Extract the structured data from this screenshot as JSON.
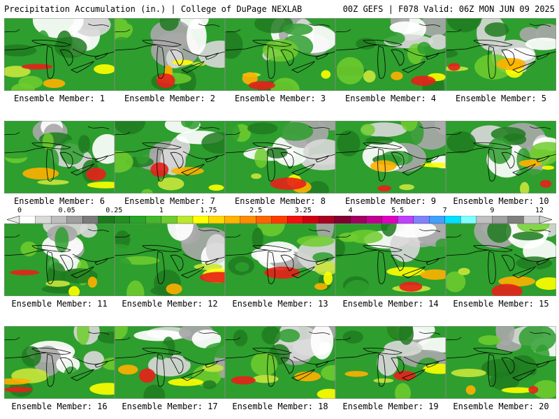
{
  "header": {
    "left_text": "Precipitation Accumulation (in.) | College of DuPage NEXLAB",
    "right_text": "00Z GEFS | F078 Valid: 06Z MON JUN 09 2025"
  },
  "legend": {
    "tick_labels": [
      "0",
      "0.05",
      "0.25",
      "1",
      "1.75",
      "2.5",
      "3.25",
      "4",
      "5.5",
      "7",
      "9",
      "12"
    ],
    "colors": [
      "#ffffff",
      "#d9d9d9",
      "#bdbdbd",
      "#9e9e9e",
      "#7a7a7a",
      "#1c7a1c",
      "#208f20",
      "#27a527",
      "#44b82c",
      "#6fcc2e",
      "#b9e82c",
      "#ffff00",
      "#ffd700",
      "#ffb400",
      "#ff8c00",
      "#ff6400",
      "#ff3c00",
      "#f01010",
      "#d00010",
      "#a80020",
      "#800030",
      "#a00060",
      "#c00090",
      "#e000c0",
      "#c040ff",
      "#8080ff",
      "#40a0ff",
      "#00e0ff",
      "#80ffff",
      "#c0c0c0",
      "#a0a0a0",
      "#808080",
      "#d0d0d0"
    ]
  },
  "map_colors": {
    "dark_green": "#1f7a1f",
    "green": "#2e9e2e",
    "light_green": "#6fcc2e",
    "yellow_green": "#c8e63c",
    "yellow": "#ffff00",
    "orange": "#ffb000",
    "red": "#e8201a",
    "gray": "#a8a8a8",
    "light_gray": "#d8d8d8",
    "white": "#ffffff"
  },
  "members": [
    {
      "label": "Ensemble Member: 1"
    },
    {
      "label": "Ensemble Member: 2"
    },
    {
      "label": "Ensemble Member: 3"
    },
    {
      "label": "Ensemble Member: 4"
    },
    {
      "label": "Ensemble Member: 5"
    },
    {
      "label": "Ensemble Member: 6"
    },
    {
      "label": "Ensemble Member: 7"
    },
    {
      "label": "Ensemble Member: 8"
    },
    {
      "label": "Ensemble Member: 9"
    },
    {
      "label": "Ensemble Member: 10"
    },
    {
      "label": "Ensemble Member: 11"
    },
    {
      "label": "Ensemble Member: 12"
    },
    {
      "label": "Ensemble Member: 13"
    },
    {
      "label": "Ensemble Member: 14"
    },
    {
      "label": "Ensemble Member: 15"
    },
    {
      "label": "Ensemble Member: 16"
    },
    {
      "label": "Ensemble Member: 17"
    },
    {
      "label": "Ensemble Member: 18"
    },
    {
      "label": "Ensemble Member: 19"
    },
    {
      "label": "Ensemble Member: 20"
    }
  ]
}
